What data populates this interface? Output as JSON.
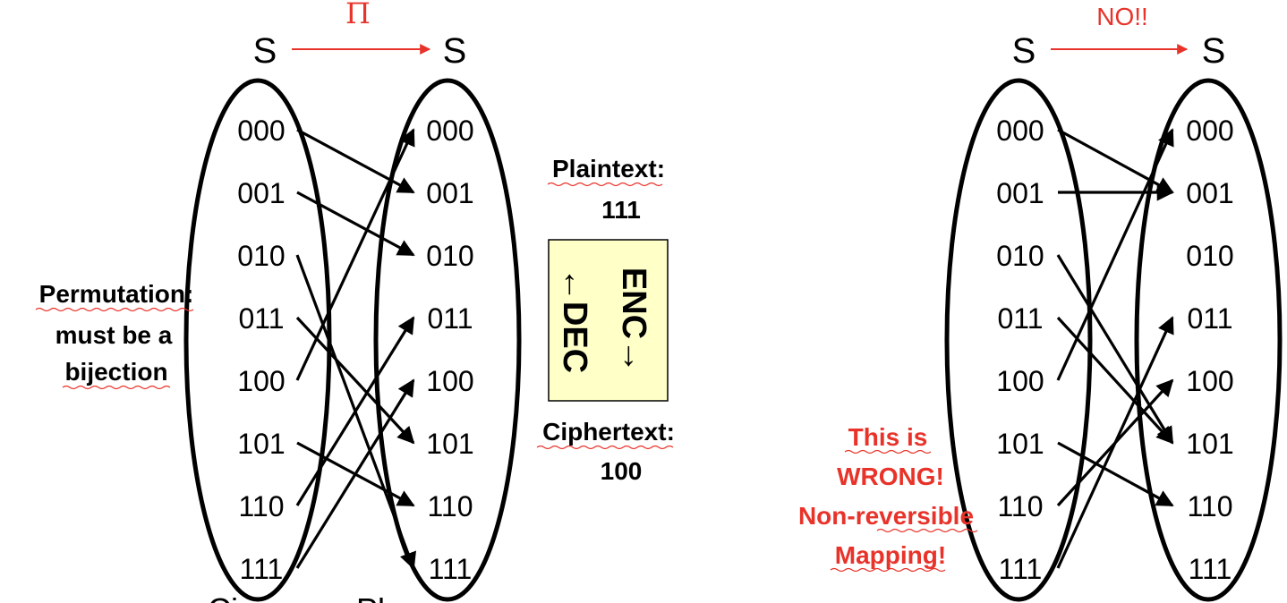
{
  "left_diagram": {
    "set_labels": [
      "S",
      "S"
    ],
    "map_symbol": "Π",
    "domain": [
      "000",
      "001",
      "010",
      "011",
      "100",
      "101",
      "110",
      "111"
    ],
    "codomain": [
      "000",
      "001",
      "010",
      "011",
      "100",
      "101",
      "110",
      "111"
    ],
    "mapping": {
      "000": "001",
      "001": "010",
      "010": "111",
      "011": "101",
      "100": "000",
      "101": "110",
      "110": "011",
      "111": "100"
    },
    "note_lines": [
      "Permutation:",
      "must be a",
      "bijection"
    ],
    "bottom_fragment": [
      "Ci",
      "Pl"
    ]
  },
  "middle": {
    "plaintext_label": "Plaintext:",
    "plaintext_value": "111",
    "enc_label": "ENC→",
    "dec_label": "←DEC",
    "ciphertext_label": "Ciphertext:",
    "ciphertext_value": "100",
    "box_color": "#ffffc8"
  },
  "right_diagram": {
    "set_labels": [
      "S",
      "S"
    ],
    "map_label": "NO!!",
    "domain": [
      "000",
      "001",
      "010",
      "011",
      "100",
      "101",
      "110",
      "111"
    ],
    "codomain": [
      "000",
      "001",
      "010",
      "011",
      "100",
      "101",
      "110",
      "111"
    ],
    "mapping": {
      "000": "001",
      "001": "001",
      "010": "101",
      "011": "101",
      "100": "000",
      "101": "110",
      "110": "100",
      "111": "011"
    },
    "note_lines": [
      "This is",
      "WRONG!",
      "Non-reversible",
      "Mapping!"
    ]
  },
  "colors": {
    "accent": "#e8332a",
    "ink": "#000000"
  }
}
